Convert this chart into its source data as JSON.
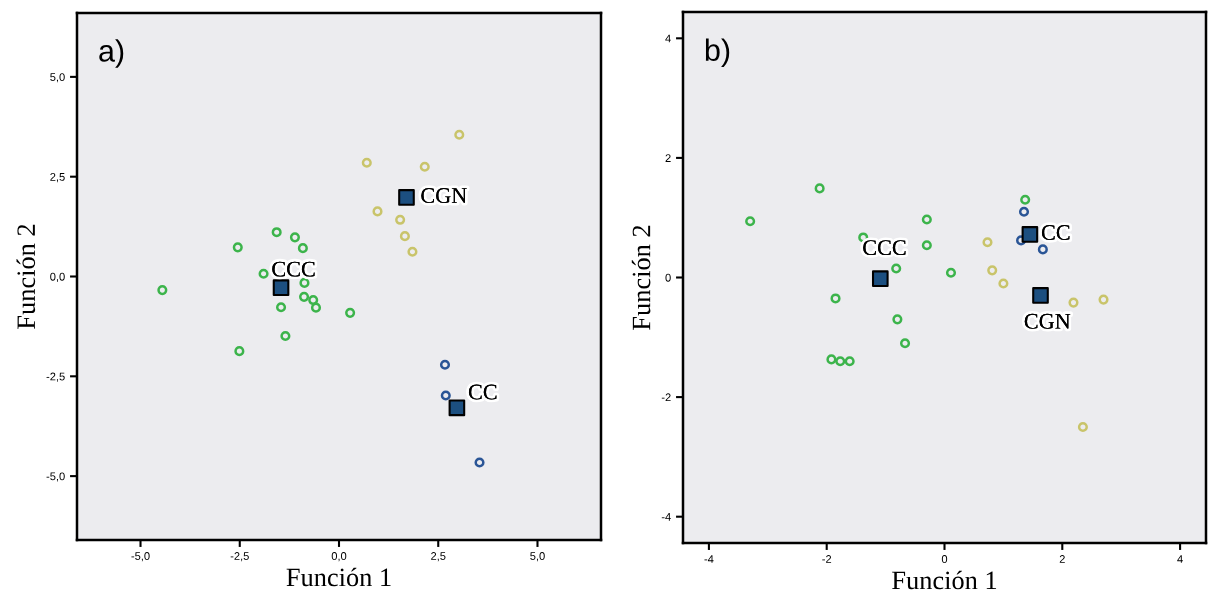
{
  "chart_data": [
    {
      "type": "scatter",
      "title": "a)",
      "xlabel": "Función 1",
      "ylabel": "Función 2",
      "xlim": [
        -6.6,
        6.6
      ],
      "ylim": [
        -6.6,
        6.6
      ],
      "xticks": [
        {
          "value": -5,
          "label": "-5,0"
        },
        {
          "value": -2.5,
          "label": "-2,5"
        },
        {
          "value": 0,
          "label": "0,0"
        },
        {
          "value": 2.5,
          "label": "2,5"
        },
        {
          "value": 5,
          "label": "5,0"
        }
      ],
      "yticks": [
        {
          "value": -5,
          "label": "-5,0"
        },
        {
          "value": -2.5,
          "label": "-2,5"
        },
        {
          "value": 0,
          "label": "0,0"
        },
        {
          "value": 2.5,
          "label": "2,5"
        },
        {
          "value": 5,
          "label": "5,0"
        }
      ],
      "grid": false,
      "series": [
        {
          "color": "#3cb44b",
          "marker": "circle",
          "x": [
            -4.45,
            -2.55,
            -1.57,
            -1.11,
            -0.91,
            -1.9,
            -0.87,
            -0.88,
            -0.65,
            -0.58,
            -1.46,
            0.28,
            -1.35,
            -2.51
          ],
          "values": [
            -0.34,
            0.73,
            1.11,
            0.98,
            0.71,
            0.07,
            -0.16,
            -0.51,
            -0.59,
            -0.78,
            -0.77,
            -0.91,
            -1.49,
            -1.87
          ]
        },
        {
          "color": "#c9c46a",
          "marker": "circle",
          "x": [
            3.03,
            0.7,
            2.16,
            0.97,
            1.54,
            1.66,
            1.85
          ],
          "values": [
            3.55,
            2.85,
            2.75,
            1.63,
            1.42,
            1.01,
            0.62
          ]
        },
        {
          "color": "#2a5596",
          "marker": "circle",
          "x": [
            2.67,
            2.69,
            3.54
          ],
          "values": [
            -2.21,
            -2.98,
            -4.66
          ]
        },
        {
          "color": "#1c4f80",
          "marker": "square",
          "x": [
            -1.46,
            1.7,
            2.97
          ],
          "values": [
            -0.28,
            1.98,
            -3.29
          ]
        }
      ],
      "annotations": [
        {
          "text": "CCC",
          "x": -1.46,
          "y": -0.28
        },
        {
          "text": "CGN",
          "x": 1.7,
          "y": 1.98
        },
        {
          "text": "CC",
          "x": 2.97,
          "y": -3.29
        }
      ]
    },
    {
      "type": "scatter",
      "title": "b)",
      "xlabel": "Función 1",
      "ylabel": "Función 2",
      "xlim": [
        -4.44,
        4.44
      ],
      "ylim": [
        -4.44,
        4.44
      ],
      "xticks": [
        -4,
        -2,
        0,
        2,
        4
      ],
      "yticks": [
        -4,
        -2,
        0,
        2,
        4
      ],
      "grid": false,
      "series": [
        {
          "color": "#3cb44b",
          "marker": "circle",
          "x": [
            -3.3,
            -2.12,
            -1.38,
            -0.3,
            -0.3,
            -0.82,
            0.11,
            -1.85,
            -0.8,
            -0.67,
            -1.92,
            -1.77,
            -1.61,
            1.37
          ],
          "values": [
            0.94,
            1.49,
            0.67,
            0.97,
            0.54,
            0.15,
            0.08,
            -0.35,
            -0.7,
            -1.1,
            -1.37,
            -1.4,
            -1.4,
            1.3
          ]
        },
        {
          "color": "#2a5596",
          "marker": "circle",
          "x": [
            1.35,
            1.3,
            1.67
          ],
          "values": [
            1.1,
            0.62,
            0.47
          ]
        },
        {
          "color": "#c9c46a",
          "marker": "circle",
          "x": [
            0.73,
            0.81,
            1.0,
            2.19,
            2.7,
            2.35
          ],
          "values": [
            0.59,
            0.12,
            -0.1,
            -0.42,
            -0.37,
            -2.5
          ]
        },
        {
          "color": "#1c4f80",
          "marker": "square",
          "x": [
            -1.09,
            1.45,
            1.63
          ],
          "values": [
            -0.02,
            0.72,
            -0.3
          ]
        }
      ],
      "annotations": [
        {
          "text": "CCC",
          "x": -1.09,
          "y": -0.02
        },
        {
          "text": "CC",
          "x": 1.45,
          "y": 0.72
        },
        {
          "text": "CGN",
          "x": 1.63,
          "y": -0.3
        }
      ]
    }
  ]
}
